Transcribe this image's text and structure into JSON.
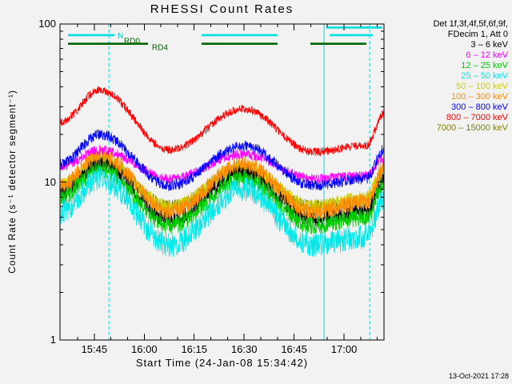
{
  "title": "RHESSI Count Rates",
  "timestamp": "13-Oct-2021 17:28",
  "bg_color": "#f2f2f2",
  "axes": {
    "xlabel": "Start Time (24-Jan-08 15:34:42)",
    "ylabel": "Count Rate (s⁻¹ detector segment⁻¹)",
    "t_max": 97.3,
    "x_minor_start": 5.3,
    "x_minor_step": 5,
    "x_ticks": [
      {
        "t": 10.3,
        "label": "15:45"
      },
      {
        "t": 25.3,
        "label": "16:00"
      },
      {
        "t": 40.3,
        "label": "16:15"
      },
      {
        "t": 55.3,
        "label": "16:30"
      },
      {
        "t": 70.3,
        "label": "16:45"
      },
      {
        "t": 85.3,
        "label": "17:00"
      }
    ],
    "y_ticks": [
      {
        "v": 1,
        "label": "1"
      },
      {
        "v": 10,
        "label": "10"
      },
      {
        "v": 100,
        "label": "100"
      }
    ],
    "y_range": [
      1,
      100
    ],
    "y_scale": "log"
  },
  "legend": {
    "header": [
      "Det 1f,3f,4f,5f,6f,9f,",
      "FDecim 1, Att 0"
    ]
  },
  "chart_data": {
    "type": "line",
    "title": "RHESSI Count Rates",
    "xlabel": "Start Time (24-Jan-08 15:34:42)",
    "ylabel": "Count Rate (s^-1 detector segment^-1)",
    "x_unit": "minutes since 24-Jan-08 15:34:42",
    "ylim": [
      1,
      100
    ],
    "n_points": 1200,
    "key_t": [
      0,
      12,
      33,
      55,
      76,
      92,
      97.3
    ],
    "series": [
      {
        "name": "3 – 6 keV",
        "color": "#000000",
        "key_v": [
          8.5,
          13,
          5.8,
          11.5,
          5.8,
          6.5,
          10
        ],
        "noise": 0.12
      },
      {
        "name": "6 – 12 keV",
        "color": "#ff00ff",
        "key_v": [
          12.5,
          16,
          10.5,
          15,
          10.5,
          11,
          14
        ],
        "noise": 0.07
      },
      {
        "name": "12 – 25 keV",
        "color": "#00cc00",
        "key_v": [
          8,
          12,
          5.3,
          10.5,
          5.3,
          6,
          9.5
        ],
        "noise": 0.13
      },
      {
        "name": "25 – 50 keV",
        "color": "#00e8e8",
        "key_v": [
          6.5,
          10.5,
          4.0,
          9.0,
          4.0,
          4.5,
          8
        ],
        "noise": 0.18
      },
      {
        "name": "50 – 100 keV",
        "color": "#d0d000",
        "key_v": [
          9.5,
          14,
          7,
          12.5,
          7,
          8,
          12
        ],
        "noise": 0.1
      },
      {
        "name": "100 – 300 keV",
        "color": "#ff8c00",
        "key_v": [
          9.5,
          15,
          6.5,
          13,
          6.5,
          7.5,
          12
        ],
        "noise": 0.12
      },
      {
        "name": "300 – 800 keV",
        "color": "#0000ff",
        "key_v": [
          13,
          20,
          9.5,
          17,
          9.5,
          10.5,
          16
        ],
        "noise": 0.08
      },
      {
        "name": "800 – 7000 keV",
        "color": "#ff0000",
        "key_v": [
          24,
          38,
          16,
          29,
          15.5,
          17,
          27
        ],
        "noise": 0.06
      },
      {
        "name": "7000 – 15000 keV",
        "color": "#808000",
        "key_v": [
          9,
          13.5,
          7,
          12,
          7,
          7.5,
          11
        ],
        "noise": 0.1
      }
    ],
    "draw_order": [
      8,
      4,
      0,
      2,
      5,
      3,
      1,
      6,
      7
    ],
    "flags": {
      "rows": [
        {
          "name": "night-flag-upper",
          "color": "#00e0e0",
          "value": 95,
          "segments": [
            [
              80,
              96.8
            ]
          ]
        },
        {
          "name": "night-flag",
          "color": "#00e0e0",
          "value": 85,
          "segments": [
            [
              2.4,
              16.4
            ],
            [
              42.5,
              65.3
            ],
            [
              81,
              94
            ]
          ]
        },
        {
          "name": "rd4-flag",
          "color": "#006400",
          "value": 75,
          "segments": [
            [
              2.4,
              26.4
            ],
            [
              42.5,
              65.3
            ],
            [
              75.2,
              92
            ]
          ]
        }
      ],
      "labels": [
        {
          "text": "N",
          "t": 17.3,
          "value": 84,
          "color": "#00cccc"
        },
        {
          "text": "RD0",
          "t": 19.2,
          "value": 78,
          "color": "#006400"
        },
        {
          "text": "RD4",
          "t": 27.6,
          "value": 71,
          "color": "#006400"
        }
      ]
    },
    "vlines": [
      {
        "t": 14.7,
        "style": "dashed",
        "color": "#00dddd"
      },
      {
        "t": 79.3,
        "style": "solid",
        "color": "#00dddd"
      },
      {
        "t": 93.0,
        "style": "dashed",
        "color": "#00dddd"
      }
    ]
  }
}
